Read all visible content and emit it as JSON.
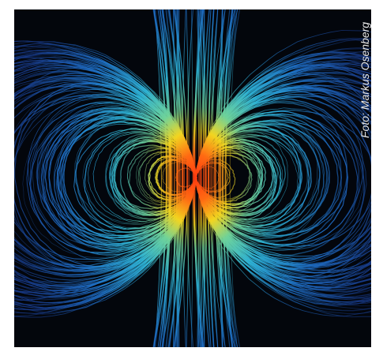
{
  "credit": "Foto: Markus Osenberg"
}
